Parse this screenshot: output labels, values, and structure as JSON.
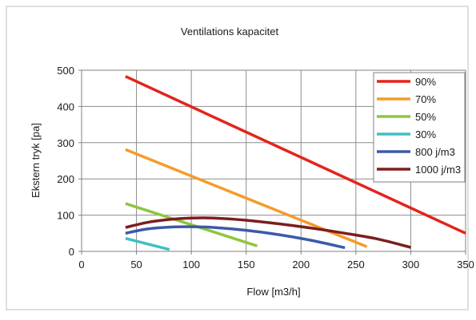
{
  "chart_data": {
    "type": "line",
    "title": "Ventilations kapacitet",
    "xlabel": "Flow [m3/h]",
    "ylabel": "Ekstern tryk [pa]",
    "xlim": [
      0,
      350
    ],
    "ylim": [
      0,
      500
    ],
    "xticks": [
      "0",
      "50",
      "100",
      "150",
      "200",
      "250",
      "300",
      "350"
    ],
    "yticks": [
      "0",
      "100",
      "200",
      "300",
      "400",
      "500"
    ],
    "grid": true,
    "legend_position": "top-right",
    "series": [
      {
        "name": "90%",
        "color": "#e3241c",
        "points": [
          [
            40,
            483
          ],
          [
            350,
            50
          ]
        ]
      },
      {
        "name": "70%",
        "color": "#f59b2a",
        "points": [
          [
            40,
            281
          ],
          [
            260,
            13
          ]
        ]
      },
      {
        "name": "50%",
        "color": "#8dc63f",
        "points": [
          [
            40,
            132
          ],
          [
            160,
            15
          ]
        ]
      },
      {
        "name": "30%",
        "color": "#3fbfc5",
        "points": [
          [
            40,
            36
          ],
          [
            80,
            5
          ]
        ]
      },
      {
        "name": "800 j/m3",
        "color": "#3b5aa8",
        "points": [
          [
            40,
            50
          ],
          [
            60,
            62
          ],
          [
            80,
            67
          ],
          [
            100,
            68
          ],
          [
            120,
            66
          ],
          [
            150,
            58
          ],
          [
            180,
            46
          ],
          [
            210,
            30
          ],
          [
            240,
            10
          ]
        ]
      },
      {
        "name": "1000 j/m3",
        "color": "#7b1e1e",
        "points": [
          [
            40,
            66
          ],
          [
            60,
            80
          ],
          [
            80,
            88
          ],
          [
            100,
            92
          ],
          [
            120,
            92
          ],
          [
            150,
            86
          ],
          [
            180,
            76
          ],
          [
            210,
            64
          ],
          [
            240,
            50
          ],
          [
            270,
            34
          ],
          [
            300,
            11
          ]
        ]
      }
    ]
  }
}
